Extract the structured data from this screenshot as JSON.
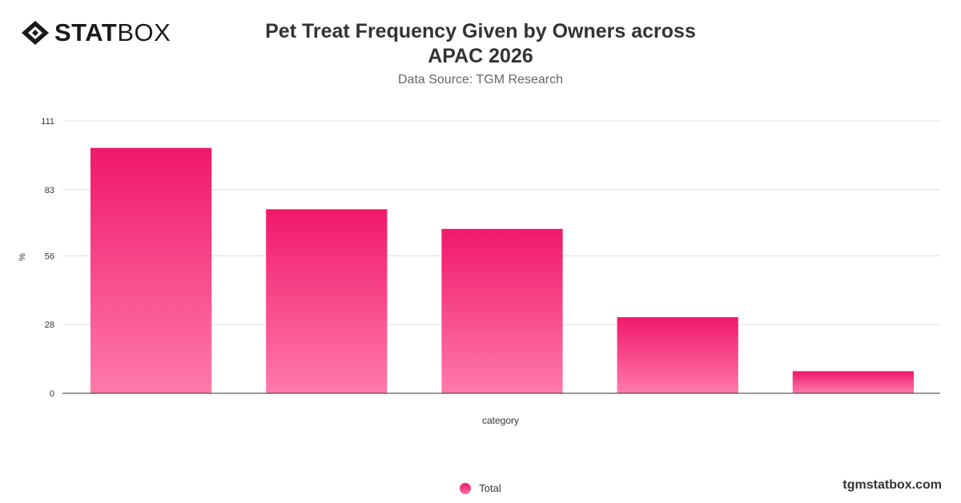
{
  "brand": {
    "logo_bold": "STAT",
    "logo_light": "BOX"
  },
  "header": {
    "title": "Pet Treat Frequency Given by Owners across APAC 2026",
    "subtitle": "Data Source: TGM Research"
  },
  "footer": {
    "credit": "tgmstatbox.com"
  },
  "colors": {
    "bar_top": "#f0186a",
    "bar_bottom": "#ff7aab",
    "grid": "#e0e0e0",
    "text": "#333333"
  },
  "chart_data": {
    "type": "bar",
    "categories": [
      "",
      "",
      "",
      "",
      ""
    ],
    "series": [
      {
        "name": "Total",
        "values": [
          100,
          75,
          67,
          31,
          9
        ]
      }
    ],
    "xlabel": "category",
    "ylabel": "%",
    "ylim": [
      0,
      111
    ],
    "yticks": [
      0,
      28,
      56,
      83,
      111
    ],
    "grid": true,
    "legend": "bottom-center"
  }
}
